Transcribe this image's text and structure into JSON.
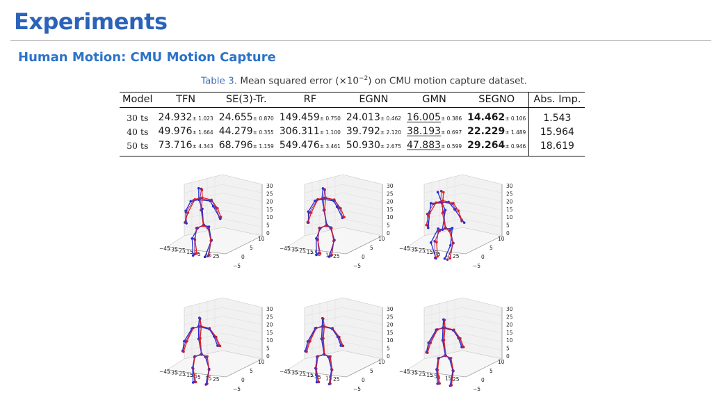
{
  "slide": {
    "title": "Experiments",
    "subtitle": "Human Motion: CMU Motion Capture"
  },
  "caption": {
    "label": "Table 3.",
    "text_before": " Mean squared error (×10",
    "exponent": "−2",
    "text_after": ") on CMU motion capture dataset."
  },
  "table": {
    "headers": [
      "Model",
      "TFN",
      "SE(3)-Tr.",
      "RF",
      "EGNN",
      "GMN",
      "SEGNO",
      "Abs. Imp."
    ],
    "rows": [
      {
        "model": "30 ts",
        "cells": [
          {
            "v": "24.932",
            "s": "± 1.023"
          },
          {
            "v": "24.655",
            "s": "± 0.870"
          },
          {
            "v": "149.459",
            "s": "± 0.750"
          },
          {
            "v": "24.013",
            "s": "± 0.462"
          },
          {
            "v": "16.005",
            "s": "± 0.386"
          },
          {
            "v": "14.462",
            "s": "± 0.106"
          }
        ],
        "abs": "1.543"
      },
      {
        "model": "40 ts",
        "cells": [
          {
            "v": "49.976",
            "s": "± 1.664"
          },
          {
            "v": "44.279",
            "s": "± 0.355"
          },
          {
            "v": "306.311",
            "s": "± 1.100"
          },
          {
            "v": "39.792",
            "s": "± 2.120"
          },
          {
            "v": "38.193",
            "s": "± 0.697"
          },
          {
            "v": "22.229",
            "s": "± 1.489"
          }
        ],
        "abs": "15.964"
      },
      {
        "model": "50 ts",
        "cells": [
          {
            "v": "73.716",
            "s": "± 4.343"
          },
          {
            "v": "68.796",
            "s": "± 1.159"
          },
          {
            "v": "549.476",
            "s": "± 3.461"
          },
          {
            "v": "50.930",
            "s": "± 2.675"
          },
          {
            "v": "47.883",
            "s": "± 0.599"
          },
          {
            "v": "29.264",
            "s": "± 0.946"
          }
        ],
        "abs": "18.619"
      }
    ]
  },
  "plots": {
    "z_ticks": [
      "30",
      "25",
      "20",
      "15",
      "10",
      "5",
      "0"
    ],
    "x_ticks": [
      "−45",
      "−35",
      "−25",
      "−15",
      "−5",
      "5",
      "15",
      "25"
    ],
    "y_ticks": [
      "10",
      "5",
      "0",
      "−5"
    ],
    "colors": {
      "ground_truth": "#1f2fd6",
      "prediction": "#e81f1f",
      "overlap": "#7a2a8a"
    }
  }
}
